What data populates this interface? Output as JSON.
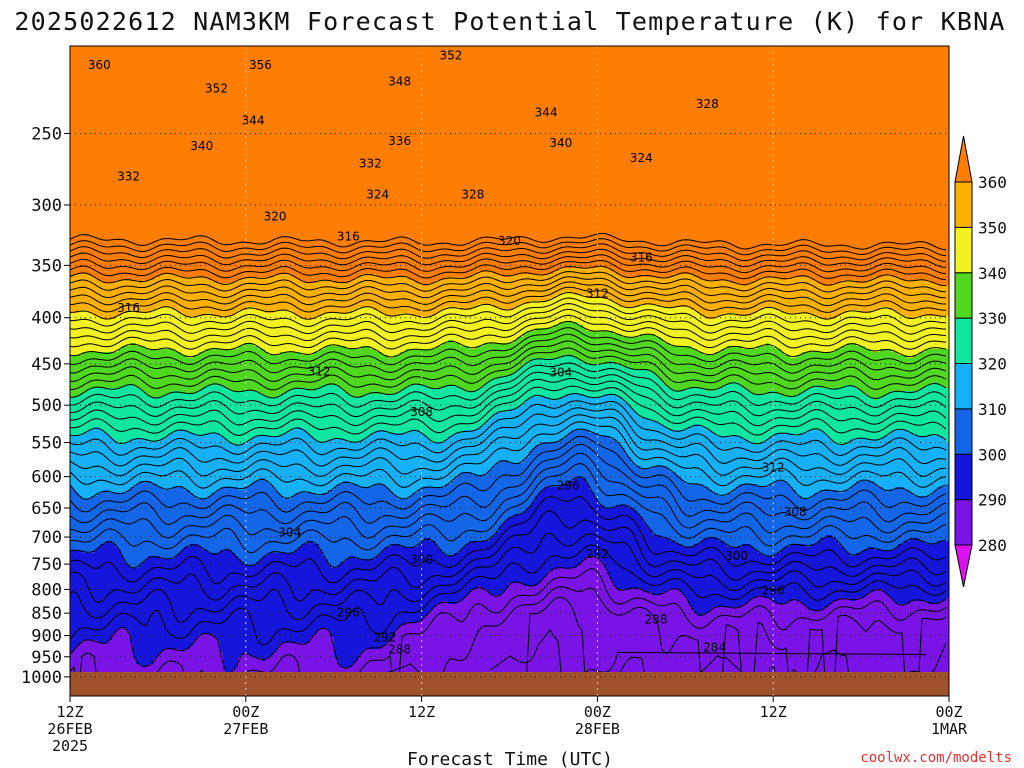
{
  "chart_data": {
    "type": "heatmap",
    "title": "2025022612 NAM3KM Forecast Potential Temperature (K) for KBNA",
    "xlabel": "Forecast Time (UTC)",
    "ylabel": "",
    "x_range_hours": [
      0,
      60
    ],
    "x_ticks": [
      {
        "hour": 0,
        "line1": "12Z",
        "line2": "26FEB",
        "line3": "2025"
      },
      {
        "hour": 12,
        "line1": "00Z",
        "line2": "27FEB",
        "line3": ""
      },
      {
        "hour": 24,
        "line1": "12Z",
        "line2": "",
        "line3": ""
      },
      {
        "hour": 36,
        "line1": "00Z",
        "line2": "28FEB",
        "line3": ""
      },
      {
        "hour": 48,
        "line1": "12Z",
        "line2": "",
        "line3": ""
      },
      {
        "hour": 60,
        "line1": "00Z",
        "line2": "1MAR",
        "line3": ""
      }
    ],
    "y_scale": "log-pressure",
    "y_range_hpa": [
      200,
      1050
    ],
    "y_ticks": [
      "250",
      "300",
      "350",
      "400",
      "450",
      "500",
      "550",
      "600",
      "650",
      "700",
      "750",
      "800",
      "850",
      "900",
      "950",
      "1000"
    ],
    "colorbar": {
      "ticks": [
        "280",
        "290",
        "300",
        "310",
        "320",
        "330",
        "340",
        "350",
        "360"
      ],
      "bands": [
        {
          "min": 270,
          "max": 280,
          "color": "#dd11ee"
        },
        {
          "min": 280,
          "max": 290,
          "color": "#7a14e6"
        },
        {
          "min": 290,
          "max": 300,
          "color": "#1515dc"
        },
        {
          "min": 300,
          "max": 310,
          "color": "#1466e8"
        },
        {
          "min": 310,
          "max": 320,
          "color": "#15b0f5"
        },
        {
          "min": 320,
          "max": 330,
          "color": "#0fe6a0"
        },
        {
          "min": 330,
          "max": 340,
          "color": "#50d820"
        },
        {
          "min": 340,
          "max": 350,
          "color": "#f2f222"
        },
        {
          "min": 350,
          "max": 360,
          "color": "#ffb000"
        },
        {
          "min": 360,
          "max": 370,
          "color": "#ff7d00"
        }
      ]
    },
    "contour_interval_K": 2,
    "surface_color": "#a0522d",
    "contour_labels": [
      {
        "v": "360",
        "hour": 2.0,
        "p": 210
      },
      {
        "v": "356",
        "hour": 13.0,
        "p": 210
      },
      {
        "v": "352",
        "hour": 26.0,
        "p": 205
      },
      {
        "v": "352",
        "hour": 10.0,
        "p": 223
      },
      {
        "v": "348",
        "hour": 22.5,
        "p": 219
      },
      {
        "v": "344",
        "hour": 12.5,
        "p": 242
      },
      {
        "v": "344",
        "hour": 32.5,
        "p": 237
      },
      {
        "v": "340",
        "hour": 9.0,
        "p": 258
      },
      {
        "v": "336",
        "hour": 22.5,
        "p": 255
      },
      {
        "v": "340",
        "hour": 33.5,
        "p": 256
      },
      {
        "v": "332",
        "hour": 20.5,
        "p": 270
      },
      {
        "v": "332",
        "hour": 4.0,
        "p": 279
      },
      {
        "v": "328",
        "hour": 43.5,
        "p": 232
      },
      {
        "v": "324",
        "hour": 39.0,
        "p": 266
      },
      {
        "v": "324",
        "hour": 21.0,
        "p": 292
      },
      {
        "v": "328",
        "hour": 27.5,
        "p": 292
      },
      {
        "v": "320",
        "hour": 14.0,
        "p": 309
      },
      {
        "v": "316",
        "hour": 19.0,
        "p": 325
      },
      {
        "v": "320",
        "hour": 30.0,
        "p": 329
      },
      {
        "v": "316",
        "hour": 39.0,
        "p": 343
      },
      {
        "v": "316",
        "hour": 4.0,
        "p": 390
      },
      {
        "v": "312",
        "hour": 36.0,
        "p": 376
      },
      {
        "v": "312",
        "hour": 17.0,
        "p": 459
      },
      {
        "v": "304",
        "hour": 33.5,
        "p": 460
      },
      {
        "v": "308",
        "hour": 24.0,
        "p": 509
      },
      {
        "v": "312",
        "hour": 48.0,
        "p": 586
      },
      {
        "v": "296",
        "hour": 34.0,
        "p": 614
      },
      {
        "v": "308",
        "hour": 49.5,
        "p": 657
      },
      {
        "v": "304",
        "hour": 15.0,
        "p": 692
      },
      {
        "v": "292",
        "hour": 36.0,
        "p": 731
      },
      {
        "v": "300",
        "hour": 24.0,
        "p": 741
      },
      {
        "v": "300",
        "hour": 45.5,
        "p": 735
      },
      {
        "v": "296",
        "hour": 48.0,
        "p": 802
      },
      {
        "v": "296",
        "hour": 19.0,
        "p": 849
      },
      {
        "v": "288",
        "hour": 40.0,
        "p": 864
      },
      {
        "v": "292",
        "hour": 21.5,
        "p": 905
      },
      {
        "v": "288",
        "hour": 22.5,
        "p": 933
      },
      {
        "v": "284",
        "hour": 44.0,
        "p": 928
      }
    ],
    "grid": true
  },
  "credit": "coolwx.com/modelts"
}
